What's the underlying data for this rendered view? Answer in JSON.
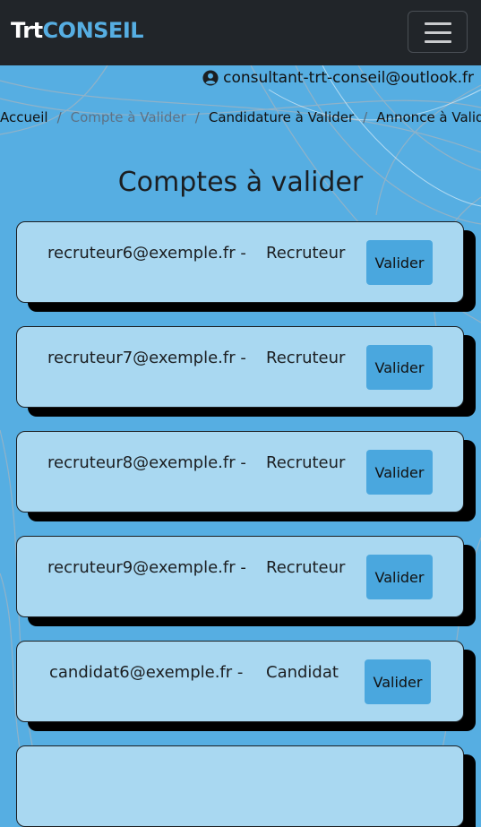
{
  "navbar": {
    "brand_part1": "Trt",
    "brand_part2": "CONSEIL"
  },
  "user": {
    "email": "consultant-trt-conseil@outlook.fr",
    "icon": "user-circle-icon"
  },
  "breadcrumb": {
    "items": [
      "Accueil",
      "Compte à Valider",
      "Candidature à Valider",
      "Annonce à Valider"
    ],
    "separator": "/"
  },
  "page": {
    "title": "Comptes à valider"
  },
  "accounts": [
    {
      "email": "recruteur6@exemple.fr -",
      "role": "Recruteur",
      "button": "Valider"
    },
    {
      "email": "recruteur7@exemple.fr -",
      "role": "Recruteur",
      "button": "Valider"
    },
    {
      "email": "recruteur8@exemple.fr -",
      "role": "Recruteur",
      "button": "Valider"
    },
    {
      "email": "recruteur9@exemple.fr -",
      "role": "Recruteur",
      "button": "Valider"
    },
    {
      "email": "candidat6@exemple.fr -",
      "role": "Candidat",
      "button": "Valider"
    }
  ],
  "colors": {
    "background": "#56aee2",
    "navbar": "#212529",
    "brand_accent": "#56aee2",
    "card": "#a9d8f1",
    "button": "#4aa7de"
  }
}
